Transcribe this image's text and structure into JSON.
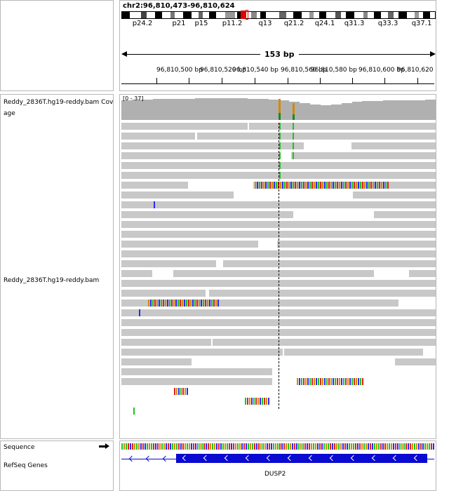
{
  "locus": {
    "position": "chr2:96,810,473-96,810,624",
    "span": "153 bp",
    "bands": [
      "p24.2",
      "p21",
      "p15",
      "p11.2",
      "q13",
      "q21.2",
      "q24.1",
      "q31.3",
      "q33.3",
      "q37.1"
    ],
    "ticks": [
      "96,810,500 bp",
      "96,810,520 bp",
      "96,810,540 bp",
      "96,810,560 bp",
      "96,810,580 bp",
      "96,810,600 bp",
      "96,810,620"
    ]
  },
  "tracks": {
    "coverage_label": "Reddy_2836T.hg19-reddy.bam Coverage",
    "coverage_range": "[0 - 37]",
    "alignment_label": "Reddy_2836T.hg19-reddy.bam",
    "sequence_label": "Sequence",
    "refseq_label": "RefSeq Genes",
    "gene_name": "DUSP2"
  },
  "colors": {
    "read": "#c8c8c8",
    "coverage": "#b0b0b0",
    "gene": "#0a0ad0",
    "A": "#1fc21f",
    "C": "#2a2aff",
    "G": "#d18a00",
    "T": "#e02020"
  }
}
